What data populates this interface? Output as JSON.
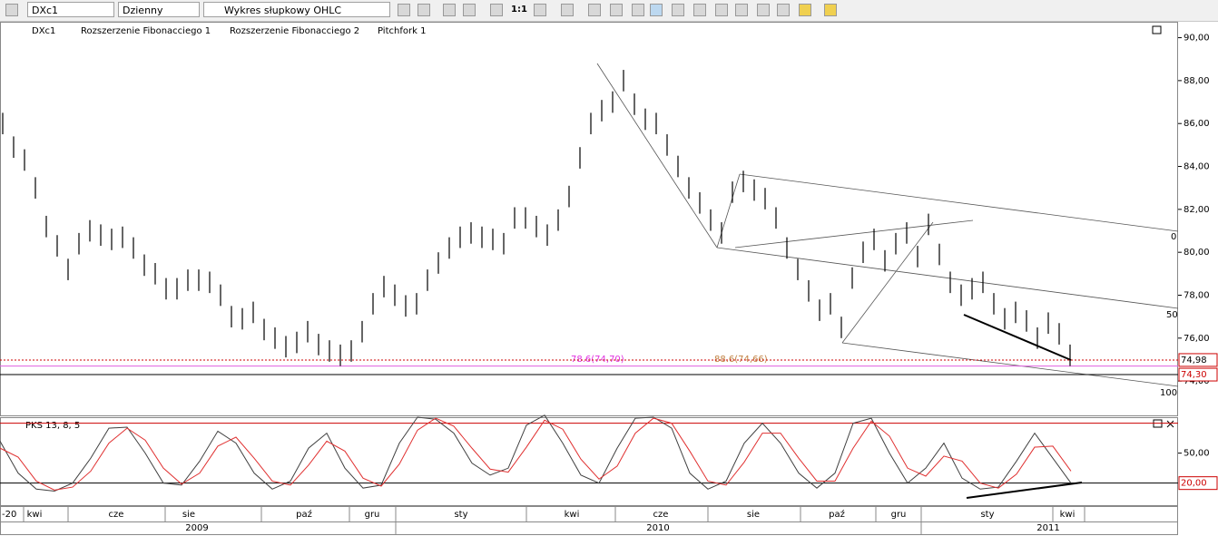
{
  "toolbar": {
    "symbol": "DXc1",
    "interval": "Dzienny",
    "chart_type": "Wykres słupkowy OHLC",
    "scale": "1:1"
  },
  "legend": [
    "DXc1",
    "Rozszerzenie Fibonacciego 1",
    "Rozszerzenie Fibonacciego 2",
    "Pitchfork 1"
  ],
  "chart_data": [
    {
      "type": "ohlc",
      "color": "#000000",
      "ylim": [
        72.4,
        90.7
      ],
      "yticks": [
        {
          "value": 74,
          "label": "74,00"
        },
        {
          "value": 76,
          "label": "76,00"
        },
        {
          "value": 78,
          "label": "78,00"
        },
        {
          "value": 80,
          "label": "80,00"
        },
        {
          "value": 82,
          "label": "82,00"
        },
        {
          "value": 84,
          "label": "84,00"
        },
        {
          "value": 86,
          "label": "86,00"
        },
        {
          "value": 88,
          "label": "88,00"
        },
        {
          "value": 90,
          "label": "90,00"
        }
      ],
      "high": [
        86.5,
        85.4,
        84.8,
        83.5,
        81.7,
        80.8,
        79.7,
        80.9,
        81.5,
        81.3,
        81.1,
        81.2,
        80.7,
        79.9,
        79.5,
        78.8,
        78.8,
        79.2,
        79.2,
        79.1,
        78.5,
        77.5,
        77.4,
        77.7,
        76.9,
        76.5,
        76.1,
        76.3,
        76.8,
        76.2,
        75.9,
        75.7,
        75.9,
        76.8,
        78.1,
        78.9,
        78.5,
        78.0,
        78.1,
        79.2,
        80.0,
        80.7,
        81.2,
        81.4,
        81.2,
        81.1,
        80.9,
        82.1,
        82.1,
        81.7,
        81.3,
        82.0,
        83.1,
        84.9,
        86.5,
        87.1,
        87.5,
        88.5,
        87.4,
        86.7,
        86.5,
        85.5,
        84.5,
        83.5,
        82.8,
        82.0,
        81.4,
        83.3,
        83.8,
        83.4,
        83.0,
        82.1,
        80.7,
        79.7,
        78.7,
        77.8,
        78.1,
        77.0,
        79.3,
        80.5,
        81.1,
        80.1,
        80.9,
        81.4,
        80.3,
        81.8,
        80.4,
        79.1,
        78.5,
        78.8,
        79.1,
        78.1,
        77.4,
        77.7,
        77.3,
        76.5,
        77.2,
        76.7,
        75.7
      ],
      "low": [
        85.5,
        84.4,
        83.8,
        82.5,
        80.7,
        79.8,
        78.7,
        79.9,
        80.5,
        80.3,
        80.1,
        80.2,
        79.7,
        78.9,
        78.5,
        77.8,
        77.8,
        78.2,
        78.2,
        78.1,
        77.5,
        76.5,
        76.4,
        76.7,
        75.9,
        75.5,
        75.1,
        75.3,
        75.8,
        75.2,
        74.9,
        74.7,
        74.9,
        75.8,
        77.1,
        77.9,
        77.5,
        77.0,
        77.1,
        78.2,
        79.0,
        79.7,
        80.2,
        80.4,
        80.2,
        80.1,
        79.9,
        81.1,
        81.1,
        80.7,
        80.3,
        81.0,
        82.1,
        83.9,
        85.5,
        86.1,
        86.5,
        87.5,
        86.4,
        85.7,
        85.5,
        84.5,
        83.5,
        82.5,
        81.8,
        81.0,
        80.4,
        82.3,
        82.8,
        82.4,
        82.0,
        81.1,
        79.7,
        78.7,
        77.7,
        76.8,
        77.1,
        76.0,
        78.3,
        79.5,
        80.1,
        79.1,
        79.9,
        80.4,
        79.3,
        80.8,
        79.4,
        78.1,
        77.5,
        77.8,
        78.1,
        77.1,
        76.4,
        76.7,
        76.3,
        75.5,
        76.2,
        75.7,
        74.7
      ],
      "levels": [
        {
          "value": 74.98,
          "label": "74,98",
          "color": "#cc0000"
        },
        {
          "value": 74.7,
          "color": "#e060e0"
        },
        {
          "value": 74.3,
          "label": "74,30",
          "color": "#000000"
        }
      ],
      "annotations": [
        "78.6(74,70)",
        "88.6(74,66)",
        "0",
        "50",
        "100"
      ]
    },
    {
      "type": "line",
      "title": "PKS 13, 8, 5",
      "ylim": [
        -3,
        86
      ],
      "yticks": [
        {
          "value": 50,
          "label": "50,00"
        }
      ],
      "levels": [
        {
          "value": 80,
          "color": "#cc0000"
        },
        {
          "value": 20,
          "label": "20,00",
          "color": "#000000"
        }
      ],
      "series": [
        {
          "color": "#404040",
          "values": [
            62,
            30,
            14,
            12,
            20,
            45,
            75,
            76,
            50,
            20,
            18,
            42,
            72,
            60,
            30,
            14,
            22,
            55,
            70,
            35,
            15,
            18,
            60,
            86,
            84,
            70,
            40,
            28,
            35,
            78,
            88,
            60,
            28,
            20,
            55,
            85,
            86,
            75,
            30,
            14,
            22,
            60,
            80,
            60,
            30,
            15,
            30,
            80,
            85,
            50,
            20,
            35,
            60,
            25,
            14,
            16,
            42,
            70,
            45,
            20
          ]
        },
        {
          "color": "#e03030",
          "values": [
            55,
            46,
            22,
            13,
            16,
            32,
            60,
            75,
            63,
            35,
            19,
            30,
            57,
            66,
            45,
            22,
            18,
            38,
            62,
            52,
            25,
            17,
            39,
            73,
            85,
            77,
            55,
            34,
            31,
            56,
            83,
            74,
            44,
            24,
            37,
            70,
            85,
            80,
            52,
            22,
            18,
            41,
            70,
            70,
            45,
            22,
            22,
            55,
            82,
            67,
            35,
            27,
            47,
            42,
            20,
            15,
            29,
            56,
            57,
            32
          ]
        }
      ]
    }
  ],
  "x_axis": {
    "first": "-20",
    "months": [
      "kwi",
      "cze",
      "sie",
      "paź",
      "gru",
      "sty",
      "kwi",
      "cze",
      "sie",
      "paź",
      "gru",
      "sty",
      "kwi"
    ],
    "years": [
      "2009",
      "2010",
      "2011"
    ]
  }
}
